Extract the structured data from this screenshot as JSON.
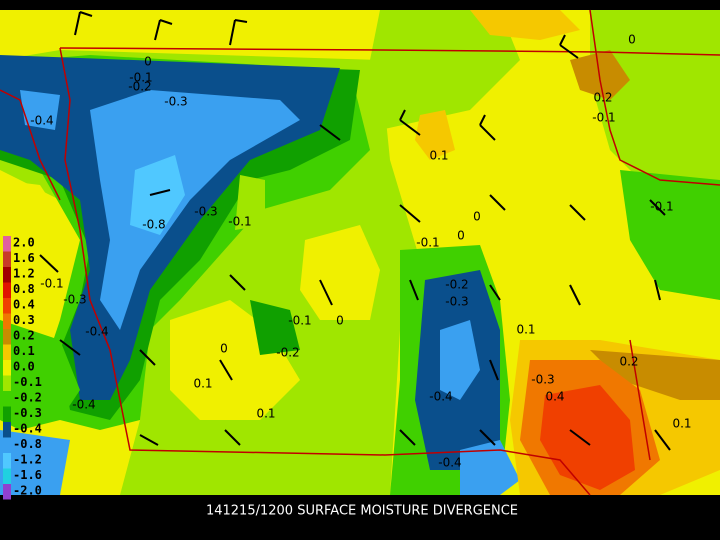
{
  "title": "141215/1200 SURFACE MOISTURE DIVERGENCE",
  "colorbar": [
    {
      "label": "2.0",
      "color": "#e060a0"
    },
    {
      "label": "1.6",
      "color": "#c83c28"
    },
    {
      "label": "1.2",
      "color": "#a00000"
    },
    {
      "label": "0.8",
      "color": "#e01400"
    },
    {
      "label": "0.4",
      "color": "#f04000"
    },
    {
      "label": "0.3",
      "color": "#f07800"
    },
    {
      "label": "0.2",
      "color": "#c88c00"
    },
    {
      "label": "0.1",
      "color": "#f5c800"
    },
    {
      "label": "0.0",
      "color": "#f0f000"
    },
    {
      "label": "-0.1",
      "color": "#a0e600"
    },
    {
      "label": "-0.2",
      "color": "#40d000"
    },
    {
      "label": "-0.3",
      "color": "#10a000"
    },
    {
      "label": "-0.4",
      "color": "#0a4f8c"
    },
    {
      "label": "-0.8",
      "color": "#3aa0f0"
    },
    {
      "label": "-1.2",
      "color": "#50c8ff"
    },
    {
      "label": "-1.6",
      "color": "#20d0e0"
    },
    {
      "label": "-2.0",
      "color": "#9040d0"
    }
  ],
  "contour_labels": [
    "0",
    "-0.1",
    "-0.2",
    "-0.3",
    "-0.4",
    "0.1",
    "-0.8",
    "-0.3",
    "-0.1",
    "0",
    "-0.1",
    "0",
    "-0.2",
    "-0.3",
    "-0.1",
    "0",
    "-0.2",
    "0.1",
    "0.2",
    "-0.3",
    "0.4",
    "-0.4",
    "0.1",
    "0",
    "0.1",
    "-0.4",
    "-0.4",
    "0.1",
    "-0.4",
    "-0.1",
    "0.2",
    "-0.1",
    "0",
    "-0.3",
    "-0.1"
  ]
}
